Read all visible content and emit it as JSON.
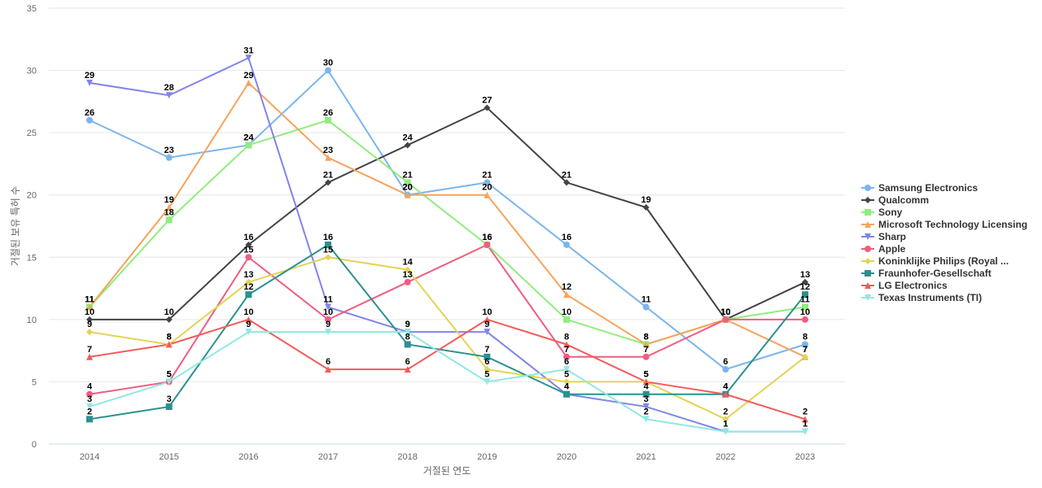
{
  "chart_data": {
    "type": "line",
    "xlabel": "거절된 연도",
    "ylabel": "거절된 보유 특허 수",
    "ylim": [
      0,
      35
    ],
    "yticks": [
      0,
      5,
      10,
      15,
      20,
      25,
      30,
      35
    ],
    "grid": true,
    "legend_position": "right",
    "categories": [
      "2014",
      "2015",
      "2016",
      "2017",
      "2018",
      "2019",
      "2020",
      "2021",
      "2022",
      "2023"
    ],
    "series": [
      {
        "name": "Samsung Electronics",
        "color": "#7cb5ec",
        "marker": "circle",
        "values": [
          26,
          23,
          24,
          30,
          20,
          21,
          16,
          11,
          6,
          8
        ]
      },
      {
        "name": "Qualcomm",
        "color": "#434348",
        "marker": "diamond",
        "values": [
          10,
          10,
          16,
          21,
          24,
          27,
          21,
          19,
          10,
          13
        ]
      },
      {
        "name": "Sony",
        "color": "#90ed7d",
        "marker": "square",
        "values": [
          11,
          18,
          24,
          26,
          21,
          16,
          10,
          8,
          10,
          11
        ]
      },
      {
        "name": "Microsoft Technology Licensing",
        "color": "#f7a35c",
        "marker": "triangle",
        "values": [
          11,
          19,
          29,
          23,
          20,
          20,
          12,
          8,
          10,
          7
        ]
      },
      {
        "name": "Sharp",
        "color": "#8085e9",
        "marker": "triangle-down",
        "values": [
          29,
          28,
          31,
          11,
          9,
          9,
          4,
          3,
          1,
          1
        ]
      },
      {
        "name": "Apple",
        "color": "#f15c80",
        "marker": "circle",
        "values": [
          4,
          5,
          15,
          10,
          13,
          16,
          7,
          7,
          10,
          10
        ]
      },
      {
        "name": "Koninklijke Philips (Royal ...",
        "color": "#e4d354",
        "marker": "diamond",
        "values": [
          9,
          8,
          13,
          15,
          14,
          6,
          5,
          5,
          2,
          7
        ]
      },
      {
        "name": "Fraunhofer-Gesellschaft",
        "color": "#2b908f",
        "marker": "square",
        "values": [
          2,
          3,
          12,
          16,
          8,
          7,
          4,
          4,
          4,
          12
        ]
      },
      {
        "name": "LG Electronics",
        "color": "#f45b5b",
        "marker": "triangle",
        "values": [
          7,
          8,
          10,
          6,
          6,
          10,
          8,
          5,
          4,
          2
        ]
      },
      {
        "name": "Texas Instruments (TI)",
        "color": "#91e8e1",
        "marker": "triangle-down",
        "values": [
          3,
          5,
          9,
          9,
          9,
          5,
          6,
          2,
          1,
          1
        ]
      }
    ]
  }
}
